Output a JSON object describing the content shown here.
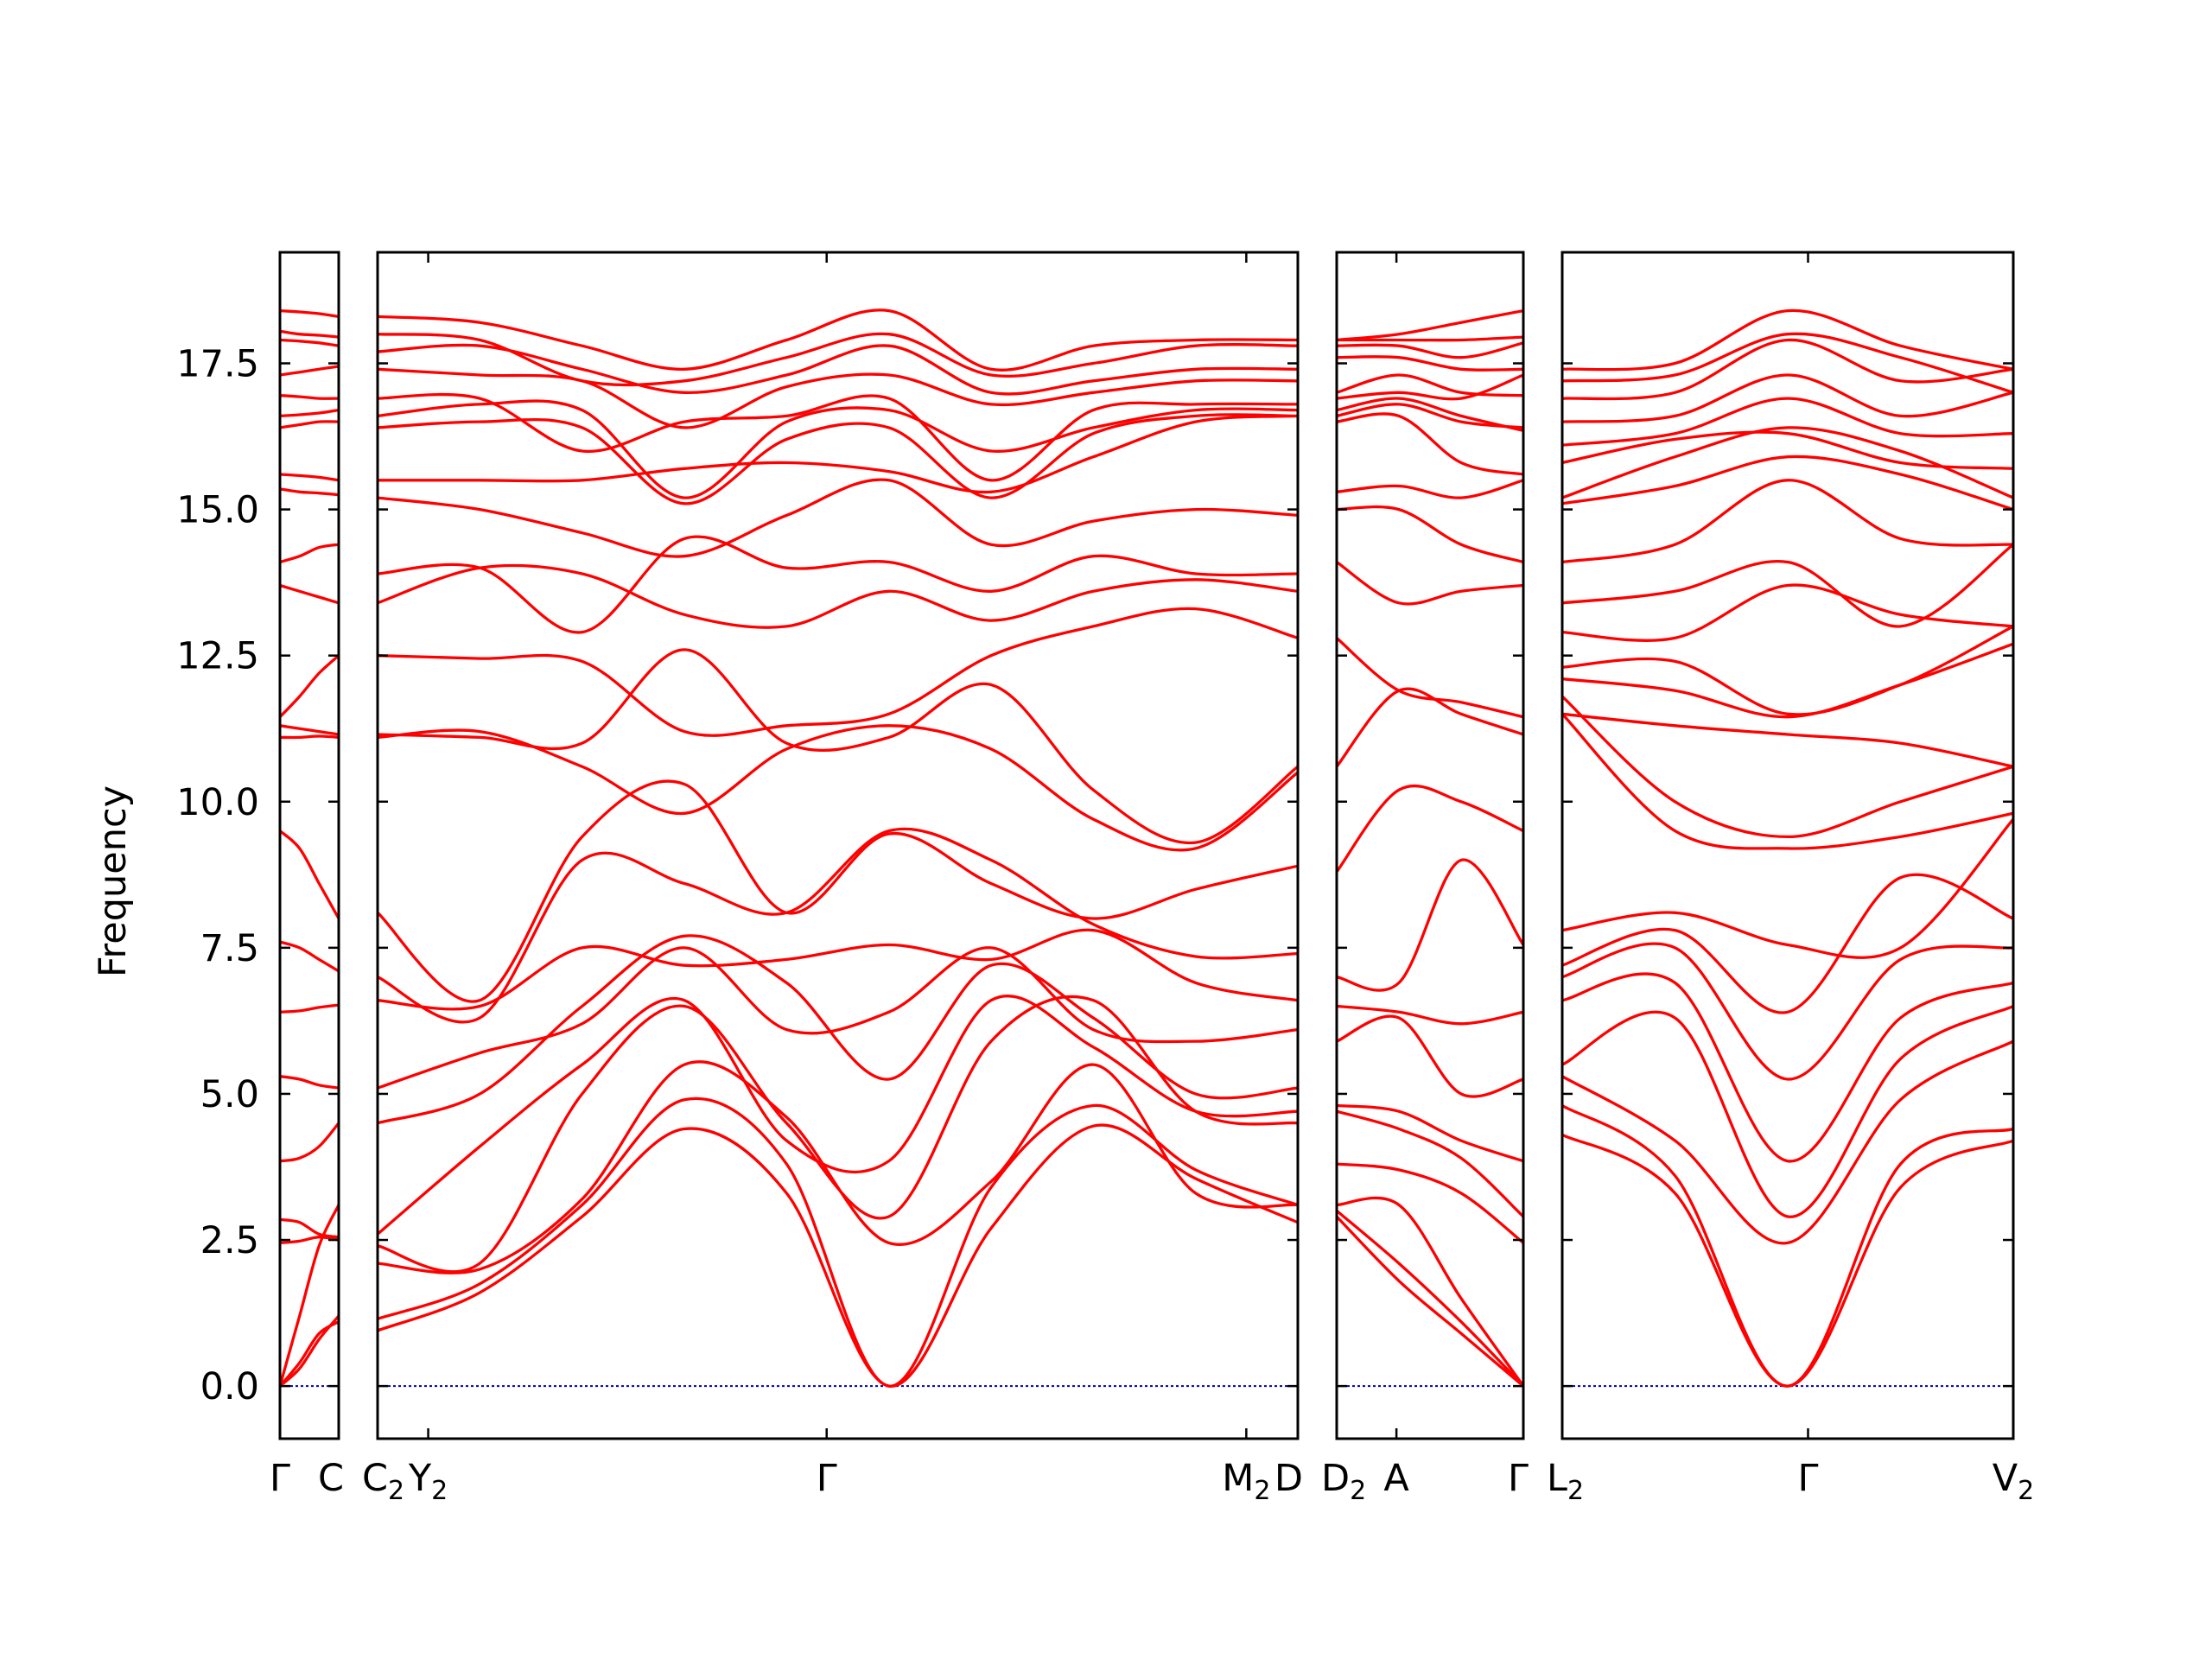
{
  "chart_data": {
    "type": "line",
    "ylabel": "Frequency",
    "ylim": [
      -0.9,
      19.4
    ],
    "yticks": [
      "0.0",
      "2.5",
      "5.0",
      "7.5",
      "10.0",
      "12.5",
      "15.0",
      "17.5"
    ],
    "ytick_values": [
      0,
      2.5,
      5.0,
      7.5,
      10.0,
      12.5,
      15.0,
      17.5
    ],
    "colors": {
      "bands": "#ff0000",
      "zero_line": "#0000aa",
      "frame": "#000000"
    },
    "panels": [
      {
        "name": "Γ–C",
        "xlim": [
          0,
          1
        ],
        "labels": [
          {
            "base": "Γ",
            "sub": "",
            "x": 0
          },
          {
            "base": "C",
            "sub": "",
            "x": 1
          }
        ],
        "bands": [
          [
            0,
            0.3,
            0.8,
            1.2
          ],
          [
            0,
            0.4,
            0.9,
            1.1
          ],
          [
            0,
            1.2,
            2.4,
            3.1
          ],
          [
            2.45,
            2.48,
            2.55,
            2.5
          ],
          [
            2.85,
            2.8,
            2.6,
            2.55
          ],
          [
            3.85,
            3.9,
            4.1,
            4.5
          ],
          [
            5.3,
            5.25,
            5.15,
            5.1
          ],
          [
            6.4,
            6.42,
            6.48,
            6.52
          ],
          [
            7.6,
            7.5,
            7.3,
            7.1
          ],
          [
            9.5,
            9.2,
            8.6,
            8.0
          ],
          [
            11.1,
            11.1,
            11.12,
            11.1
          ],
          [
            11.3,
            11.25,
            11.2,
            11.15
          ],
          [
            11.45,
            11.8,
            12.2,
            12.5
          ],
          [
            13.7,
            13.6,
            13.5,
            13.4
          ],
          [
            14.1,
            14.2,
            14.35,
            14.4
          ],
          [
            15.35,
            15.3,
            15.28,
            15.25
          ],
          [
            15.6,
            15.58,
            15.55,
            15.5
          ],
          [
            16.4,
            16.45,
            16.5,
            16.5
          ],
          [
            16.6,
            16.62,
            16.65,
            16.7
          ],
          [
            16.95,
            16.93,
            16.9,
            16.9
          ],
          [
            17.3,
            17.35,
            17.4,
            17.45
          ],
          [
            17.9,
            17.88,
            17.85,
            17.8
          ],
          [
            18.05,
            18.0,
            17.98,
            17.95
          ],
          [
            18.4,
            18.38,
            18.35,
            18.3
          ]
        ]
      },
      {
        "name": "C2–Y2–Γ–M2–D",
        "xlim": [
          0,
          1
        ],
        "labels": [
          {
            "base": "C",
            "sub": "2",
            "x": 0
          },
          {
            "base": "Y",
            "sub": "2",
            "x": 0.055
          },
          {
            "base": "Γ",
            "sub": "",
            "x": 0.488
          },
          {
            "base": "M",
            "sub": "2",
            "x": 0.944
          },
          {
            "base": "D",
            "sub": "",
            "x": 1
          }
        ],
        "bands": [
          [
            0.95,
            1.6,
            2.9,
            4.4,
            3.3,
            0.0,
            2.7,
            4.45,
            3.55,
            2.8
          ],
          [
            1.15,
            1.75,
            3.1,
            4.9,
            3.8,
            0.0,
            3.4,
            4.8,
            3.7,
            3.1
          ],
          [
            2.1,
            2.0,
            3.2,
            5.5,
            4.6,
            2.45,
            3.5,
            5.5,
            3.3,
            3.1
          ],
          [
            2.4,
            2.1,
            5.0,
            6.5,
            4.5,
            2.9,
            5.9,
            6.6,
            4.7,
            4.5
          ],
          [
            2.6,
            4.1,
            5.5,
            6.6,
            4.2,
            3.85,
            6.6,
            5.8,
            4.7,
            4.7
          ],
          [
            4.5,
            5.0,
            6.5,
            7.7,
            6.9,
            5.25,
            7.2,
            6.3,
            5.0,
            5.1
          ],
          [
            5.1,
            5.7,
            6.2,
            7.5,
            6.1,
            6.4,
            7.5,
            6.1,
            5.9,
            6.1
          ],
          [
            6.6,
            6.5,
            7.5,
            7.2,
            7.3,
            7.55,
            7.3,
            7.8,
            6.9,
            6.6
          ],
          [
            7.0,
            6.3,
            9.0,
            8.6,
            8.1,
            9.5,
            9.0,
            7.9,
            7.35,
            7.4
          ],
          [
            8.1,
            6.6,
            9.4,
            10.3,
            8.1,
            9.45,
            8.6,
            8.0,
            8.5,
            8.9
          ],
          [
            11.1,
            11.2,
            10.6,
            9.8,
            10.9,
            11.3,
            10.9,
            9.7,
            9.2,
            10.5
          ],
          [
            11.15,
            11.1,
            11.0,
            12.6,
            11.0,
            11.1,
            12.0,
            10.2,
            9.3,
            10.6
          ],
          [
            12.5,
            12.45,
            12.4,
            11.2,
            11.3,
            11.5,
            12.5,
            13.0,
            13.3,
            12.8
          ],
          [
            13.4,
            14.0,
            13.9,
            13.2,
            13.0,
            13.6,
            13.1,
            13.6,
            13.8,
            13.6
          ],
          [
            13.9,
            14.0,
            12.9,
            14.5,
            14.0,
            14.1,
            13.6,
            14.2,
            13.9,
            13.9
          ],
          [
            15.2,
            15.0,
            14.6,
            14.2,
            14.9,
            15.5,
            14.4,
            14.8,
            15.0,
            14.9
          ],
          [
            15.5,
            15.5,
            15.5,
            15.7,
            15.8,
            15.65,
            15.3,
            15.9,
            16.5,
            16.6
          ],
          [
            16.4,
            16.5,
            16.4,
            15.1,
            16.2,
            16.4,
            15.2,
            16.3,
            16.6,
            16.6
          ],
          [
            16.6,
            16.8,
            16.7,
            15.2,
            16.5,
            16.7,
            16.0,
            16.4,
            16.7,
            16.7
          ],
          [
            16.9,
            16.9,
            16.0,
            16.5,
            16.6,
            16.9,
            15.5,
            16.7,
            16.8,
            16.8
          ],
          [
            17.4,
            17.3,
            17.2,
            16.4,
            17.1,
            17.3,
            16.8,
            17.0,
            17.2,
            17.2
          ],
          [
            17.7,
            17.8,
            17.4,
            17.0,
            17.3,
            17.8,
            17.0,
            17.2,
            17.4,
            17.4
          ],
          [
            18.0,
            17.9,
            17.2,
            17.2,
            17.6,
            18.0,
            17.3,
            17.5,
            17.8,
            17.8
          ],
          [
            18.3,
            18.2,
            17.8,
            17.4,
            17.9,
            18.4,
            17.4,
            17.8,
            17.9,
            17.9
          ]
        ]
      },
      {
        "name": "D2–A–Γ",
        "xlim": [
          0,
          1
        ],
        "labels": [
          {
            "base": "D",
            "sub": "2",
            "x": 0
          },
          {
            "base": "A",
            "sub": "",
            "x": 0.32
          },
          {
            "base": "Γ",
            "sub": "",
            "x": 1
          }
        ],
        "bands": [
          [
            2.9,
            1.8,
            0.9,
            0.0
          ],
          [
            3.0,
            2.1,
            1.1,
            0.0
          ],
          [
            3.1,
            3.1,
            1.5,
            0.0
          ],
          [
            3.8,
            3.7,
            3.3,
            2.45
          ],
          [
            4.7,
            4.4,
            3.9,
            2.9
          ],
          [
            4.8,
            4.7,
            4.2,
            3.85
          ],
          [
            5.9,
            6.3,
            5.0,
            5.25
          ],
          [
            6.5,
            6.4,
            6.2,
            6.4
          ],
          [
            7.0,
            6.9,
            9.0,
            7.55
          ],
          [
            8.8,
            10.2,
            10.0,
            9.5
          ],
          [
            10.6,
            11.9,
            11.5,
            11.15
          ],
          [
            12.8,
            11.9,
            11.7,
            11.45
          ],
          [
            14.1,
            13.4,
            13.6,
            13.7
          ],
          [
            15.0,
            15.0,
            14.4,
            14.1
          ],
          [
            15.3,
            15.4,
            15.2,
            15.5
          ],
          [
            16.5,
            16.6,
            15.8,
            15.6
          ],
          [
            16.6,
            16.8,
            16.5,
            16.4
          ],
          [
            16.7,
            16.9,
            16.6,
            16.35
          ],
          [
            16.9,
            17.0,
            16.9,
            17.3
          ],
          [
            17.0,
            17.3,
            17.0,
            16.95
          ],
          [
            17.6,
            17.6,
            17.4,
            17.4
          ],
          [
            17.8,
            17.8,
            17.6,
            17.85
          ],
          [
            17.9,
            17.9,
            17.9,
            17.95
          ],
          [
            17.9,
            18.0,
            18.2,
            18.4
          ]
        ]
      },
      {
        "name": "L2–Γ–V2",
        "xlim": [
          0,
          1
        ],
        "labels": [
          {
            "base": "L",
            "sub": "2",
            "x": 0
          },
          {
            "base": "Γ",
            "sub": "",
            "x": 0.545
          },
          {
            "base": "V",
            "sub": "2",
            "x": 1
          }
        ],
        "bands": [
          [
            4.3,
            3.3,
            0.0,
            3.4,
            4.2
          ],
          [
            4.8,
            3.6,
            0.0,
            3.8,
            4.4
          ],
          [
            5.3,
            4.2,
            2.45,
            4.9,
            5.9
          ],
          [
            5.5,
            6.3,
            2.9,
            5.6,
            6.5
          ],
          [
            6.6,
            6.9,
            3.85,
            6.3,
            6.9
          ],
          [
            7.0,
            7.5,
            5.25,
            7.3,
            7.5
          ],
          [
            7.2,
            7.8,
            6.4,
            8.7,
            8.0
          ],
          [
            7.8,
            8.1,
            7.55,
            7.5,
            9.7
          ],
          [
            11.5,
            9.5,
            9.2,
            9.4,
            9.8
          ],
          [
            11.8,
            10.0,
            9.4,
            10.0,
            10.6
          ],
          [
            11.5,
            11.3,
            11.15,
            11.0,
            10.6
          ],
          [
            12.1,
            11.9,
            11.45,
            12.0,
            12.7
          ],
          [
            12.3,
            12.4,
            11.5,
            12.0,
            13.0
          ],
          [
            12.9,
            12.8,
            13.7,
            13.2,
            13.0
          ],
          [
            13.4,
            13.6,
            14.1,
            13.0,
            14.4
          ],
          [
            14.1,
            14.4,
            15.5,
            14.5,
            14.4
          ],
          [
            15.1,
            15.4,
            15.9,
            15.6,
            15.0
          ],
          [
            15.2,
            15.9,
            16.4,
            16.0,
            15.2
          ],
          [
            15.8,
            16.2,
            16.3,
            15.8,
            15.7
          ],
          [
            16.1,
            16.3,
            16.9,
            16.3,
            16.3
          ],
          [
            16.5,
            16.6,
            17.3,
            16.6,
            17.0
          ],
          [
            16.9,
            17.0,
            17.9,
            17.2,
            17.4
          ],
          [
            17.2,
            17.3,
            18.0,
            17.6,
            17.0
          ],
          [
            17.4,
            17.5,
            18.4,
            17.8,
            17.4
          ]
        ]
      }
    ]
  }
}
